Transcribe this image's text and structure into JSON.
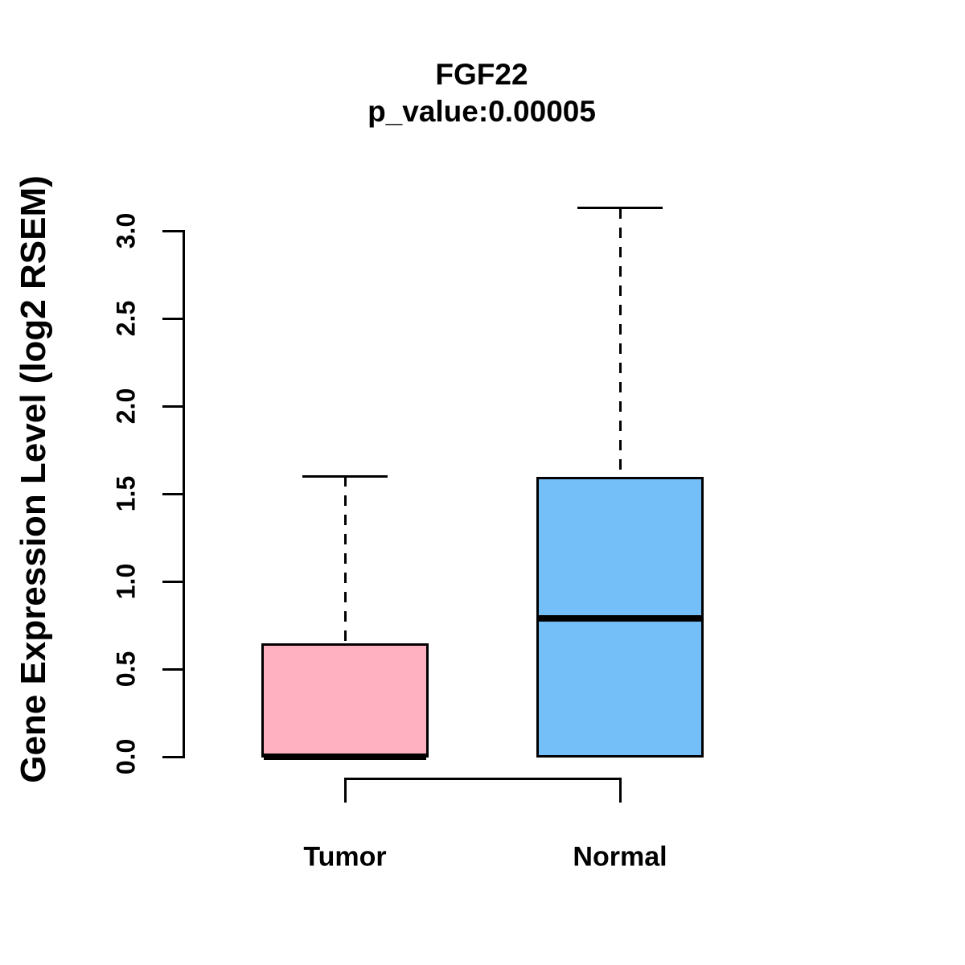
{
  "title": {
    "line1": "FGF22",
    "line2": "p_value:0.00005"
  },
  "y_axis": {
    "label": "Gene Expression Level (log2 RSEM)",
    "ticks": [
      "0.0",
      "0.5",
      "1.0",
      "1.5",
      "2.0",
      "2.5",
      "3.0"
    ]
  },
  "x_axis": {
    "categories": [
      "Tumor",
      "Normal"
    ]
  },
  "colors": {
    "tumor_fill": "#FFB1C1",
    "normal_fill": "#75BFF8",
    "line": "#000000",
    "background": "#FFFFFF"
  },
  "chart_data": {
    "type": "boxplot",
    "title": "FGF22",
    "subtitle": "p_value:0.00005",
    "ylabel": "Gene Expression Level (log2 RSEM)",
    "ylim": [
      0.0,
      3.0
    ],
    "ytick_step": 0.5,
    "grid": false,
    "legend": "none",
    "categories": [
      "Tumor",
      "Normal"
    ],
    "series": [
      {
        "name": "Tumor",
        "min": 0.0,
        "q1": 0.0,
        "median": 0.0,
        "q3": 0.64,
        "max": 1.6,
        "outliers": [],
        "color": "#FFB1C1"
      },
      {
        "name": "Normal",
        "min": 0.0,
        "q1": 0.0,
        "median": 0.79,
        "q3": 1.59,
        "max": 3.13,
        "outliers": [],
        "color": "#75BFF8"
      }
    ],
    "whisker_style": "dashed",
    "p_value": 5e-05
  }
}
